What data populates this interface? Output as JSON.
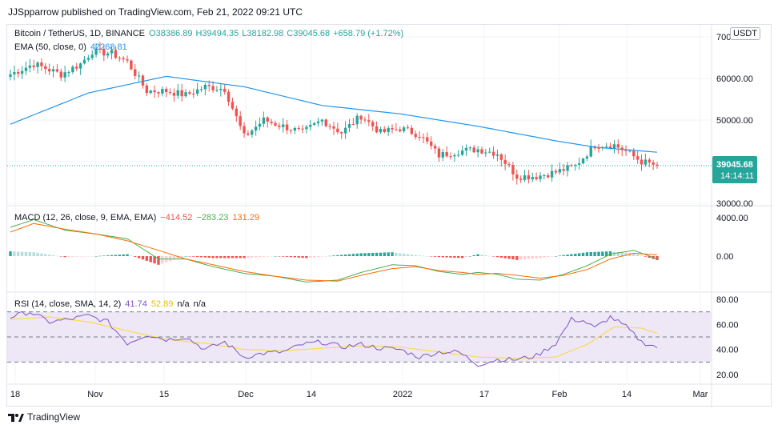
{
  "header": {
    "published_by": "JJSpparrow published on TradingView.com, Feb 21, 2022 09:21 UTC"
  },
  "legend_main": {
    "symbol": "Bitcoin / TetherUS, 1D, BINANCE",
    "open": "O38386.89",
    "high": "H39494.35",
    "low": "L38182.98",
    "close": "C39045.68",
    "change": "+658.79 (+1.72%)",
    "ema_label": "EMA (50, close, 0)",
    "ema_value": "42268.81"
  },
  "legend_macd": {
    "label": "MACD (12, 26, close, 9, EMA, EMA)",
    "hist": "−414.52",
    "macd": "−283.23",
    "signal": "131.29"
  },
  "legend_rsi": {
    "label": "RSI (14, close, SMA, 14, 2)",
    "rsi": "41.74",
    "sma": "52.89",
    "na1": "n/a",
    "na2": "n/a"
  },
  "currency_badge": "USDT",
  "price_tag": {
    "value": "39045.68",
    "countdown": "14:14:11"
  },
  "footer": {
    "brand": "TradingView"
  },
  "colors": {
    "up": "#26a69a",
    "down": "#ef5350",
    "ema": "#2196f3",
    "macd": "#4caf50",
    "signal": "#ff6d00",
    "hist_up_strong": "#26a69a",
    "hist_up_weak": "#b2dfdb",
    "hist_down_strong": "#ef5350",
    "hist_down_weak": "#ffcdd2",
    "rsi": "#7e57c2",
    "rsi_sma": "#fdd835",
    "rsi_band": "#ede7f6"
  },
  "chart_data": {
    "type": "candlestick",
    "title": "Bitcoin / TetherUS, 1D, BINANCE",
    "x_ticks": [
      "18",
      "Nov",
      "15",
      "Dec",
      "14",
      "2022",
      "17",
      "Feb",
      "14",
      "Mar"
    ],
    "price_axis": {
      "ticks": [
        "70000.00",
        "60000.00",
        "50000.00",
        "40000.00",
        "30000.00"
      ],
      "ylim": [
        30000,
        71000
      ]
    },
    "macd_axis": {
      "ticks": [
        "4000.00",
        "0.00"
      ]
    },
    "rsi_axis": {
      "ticks": [
        "80.00",
        "60.00",
        "40.00",
        "20.00"
      ],
      "band": [
        30,
        70
      ]
    },
    "candles": {
      "anchors": [
        [
          0,
          61000
        ],
        [
          6,
          63500
        ],
        [
          13,
          61000
        ],
        [
          18,
          63500
        ],
        [
          21,
          66500
        ],
        [
          26,
          66000
        ],
        [
          30,
          64000
        ],
        [
          35,
          57000
        ],
        [
          40,
          57000
        ],
        [
          45,
          56000
        ],
        [
          50,
          58000
        ],
        [
          55,
          57500
        ],
        [
          60,
          46000
        ],
        [
          65,
          50000
        ],
        [
          70,
          48500
        ],
        [
          75,
          47000
        ],
        [
          80,
          50000
        ],
        [
          85,
          47000
        ],
        [
          90,
          51000
        ],
        [
          95,
          47000
        ],
        [
          100,
          48000
        ],
        [
          105,
          46500
        ],
        [
          110,
          41500
        ],
        [
          115,
          42500
        ],
        [
          120,
          43000
        ],
        [
          125,
          42000
        ],
        [
          130,
          36500
        ],
        [
          135,
          36500
        ],
        [
          140,
          37500
        ],
        [
          145,
          39000
        ],
        [
          150,
          44000
        ],
        [
          155,
          44000
        ],
        [
          158,
          42500
        ],
        [
          162,
          40000
        ],
        [
          166,
          39045
        ]
      ]
    },
    "ema": {
      "anchors": [
        [
          0,
          49000
        ],
        [
          20,
          56500
        ],
        [
          40,
          60500
        ],
        [
          60,
          58000
        ],
        [
          80,
          53500
        ],
        [
          100,
          51500
        ],
        [
          120,
          48500
        ],
        [
          140,
          45000
        ],
        [
          150,
          43500
        ],
        [
          166,
          42268
        ]
      ]
    },
    "macd_series": {
      "macd_anchors": [
        [
          0,
          3000
        ],
        [
          6,
          3800
        ],
        [
          14,
          2700
        ],
        [
          22,
          2300
        ],
        [
          30,
          1800
        ],
        [
          38,
          -300
        ],
        [
          45,
          -300
        ],
        [
          52,
          -1100
        ],
        [
          60,
          -1800
        ],
        [
          68,
          -2100
        ],
        [
          76,
          -2700
        ],
        [
          84,
          -2500
        ],
        [
          90,
          -1700
        ],
        [
          98,
          -900
        ],
        [
          104,
          -1000
        ],
        [
          110,
          -1600
        ],
        [
          116,
          -1900
        ],
        [
          120,
          -1700
        ],
        [
          125,
          -1900
        ],
        [
          130,
          -2400
        ],
        [
          136,
          -2500
        ],
        [
          142,
          -1900
        ],
        [
          148,
          -1000
        ],
        [
          154,
          200
        ],
        [
          160,
          600
        ],
        [
          166,
          -283
        ]
      ],
      "signal_anchors": [
        [
          0,
          2500
        ],
        [
          6,
          3400
        ],
        [
          14,
          2800
        ],
        [
          22,
          2300
        ],
        [
          30,
          1600
        ],
        [
          38,
          600
        ],
        [
          45,
          -300
        ],
        [
          52,
          -900
        ],
        [
          60,
          -1600
        ],
        [
          68,
          -2100
        ],
        [
          76,
          -2500
        ],
        [
          84,
          -2600
        ],
        [
          90,
          -2000
        ],
        [
          98,
          -1300
        ],
        [
          104,
          -1100
        ],
        [
          110,
          -1500
        ],
        [
          116,
          -1700
        ],
        [
          120,
          -1900
        ],
        [
          125,
          -1800
        ],
        [
          130,
          -2000
        ],
        [
          136,
          -2300
        ],
        [
          142,
          -2000
        ],
        [
          148,
          -1400
        ],
        [
          154,
          -300
        ],
        [
          160,
          300
        ],
        [
          166,
          131
        ]
      ],
      "hist": "macd minus signal"
    },
    "rsi_series": {
      "rsi_anchors": [
        [
          0,
          66
        ],
        [
          5,
          70
        ],
        [
          10,
          62
        ],
        [
          15,
          64
        ],
        [
          20,
          67
        ],
        [
          25,
          62
        ],
        [
          30,
          45
        ],
        [
          35,
          52
        ],
        [
          40,
          48
        ],
        [
          45,
          50
        ],
        [
          50,
          40
        ],
        [
          55,
          46
        ],
        [
          60,
          34
        ],
        [
          65,
          37
        ],
        [
          70,
          38
        ],
        [
          75,
          44
        ],
        [
          80,
          46
        ],
        [
          85,
          42
        ],
        [
          90,
          44
        ],
        [
          95,
          41
        ],
        [
          100,
          40
        ],
        [
          105,
          34
        ],
        [
          110,
          38
        ],
        [
          115,
          38
        ],
        [
          120,
          28
        ],
        [
          125,
          32
        ],
        [
          130,
          32
        ],
        [
          135,
          35
        ],
        [
          140,
          45
        ],
        [
          144,
          64
        ],
        [
          147,
          63
        ],
        [
          150,
          57
        ],
        [
          154,
          66
        ],
        [
          158,
          58
        ],
        [
          162,
          46
        ],
        [
          166,
          42
        ]
      ],
      "sma_anchors": [
        [
          0,
          64
        ],
        [
          10,
          66
        ],
        [
          20,
          62
        ],
        [
          30,
          55
        ],
        [
          40,
          48
        ],
        [
          50,
          45
        ],
        [
          60,
          40
        ],
        [
          70,
          39
        ],
        [
          80,
          41
        ],
        [
          90,
          43
        ],
        [
          100,
          42
        ],
        [
          110,
          38
        ],
        [
          120,
          34
        ],
        [
          130,
          33
        ],
        [
          140,
          34
        ],
        [
          148,
          44
        ],
        [
          155,
          58
        ],
        [
          162,
          57
        ],
        [
          166,
          53
        ]
      ]
    }
  }
}
